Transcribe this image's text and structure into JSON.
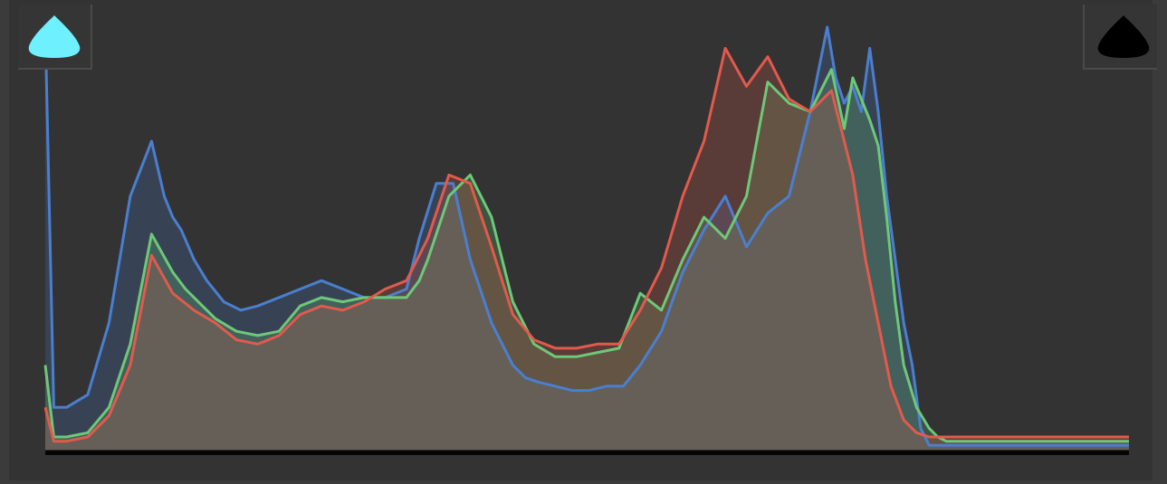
{
  "histogram": {
    "channels": [
      {
        "key": "blue",
        "color": "#4a7fd0"
      },
      {
        "key": "green",
        "color": "#6ec878"
      },
      {
        "key": "red",
        "color": "#e25a4c"
      }
    ],
    "baseline_color": "#050505",
    "shadow_clip_indicator": {
      "icon": "shadow-clipping-triangle-icon",
      "color": "#6ef0ff",
      "active": true
    },
    "highlight_clip_indicator": {
      "icon": "highlight-clipping-triangle-icon",
      "color": "#000000",
      "active": false
    }
  },
  "chart_data": {
    "type": "area",
    "x_range": [
      0,
      255
    ],
    "y_range": [
      0,
      1
    ],
    "series": [
      {
        "key": "blue",
        "x": [
          0,
          2,
          5,
          10,
          15,
          20,
          25,
          28,
          30,
          32,
          35,
          38,
          42,
          46,
          50,
          55,
          60,
          65,
          70,
          75,
          80,
          85,
          88,
          92,
          96,
          100,
          105,
          110,
          113,
          116,
          120,
          124,
          128,
          132,
          136,
          140,
          145,
          150,
          155,
          160,
          165,
          170,
          175,
          180,
          184,
          186,
          188,
          190,
          192,
          194,
          196,
          198,
          200,
          202,
          204,
          206,
          208,
          210,
          212,
          214,
          216,
          218,
          220,
          222,
          224,
          226,
          228,
          230,
          232,
          235,
          240,
          245,
          250,
          255
        ],
        "y": [
          1.0,
          0.1,
          0.1,
          0.13,
          0.3,
          0.6,
          0.73,
          0.6,
          0.55,
          0.52,
          0.45,
          0.4,
          0.35,
          0.33,
          0.34,
          0.36,
          0.38,
          0.4,
          0.38,
          0.36,
          0.36,
          0.38,
          0.5,
          0.63,
          0.63,
          0.45,
          0.3,
          0.2,
          0.17,
          0.16,
          0.15,
          0.14,
          0.14,
          0.15,
          0.15,
          0.2,
          0.28,
          0.42,
          0.52,
          0.6,
          0.48,
          0.56,
          0.6,
          0.8,
          1.0,
          0.88,
          0.82,
          0.86,
          0.8,
          0.95,
          0.8,
          0.6,
          0.45,
          0.3,
          0.2,
          0.05,
          0.01,
          0.01,
          0.01,
          0.01,
          0.01,
          0.01,
          0.01,
          0.01,
          0.01,
          0.01,
          0.01,
          0.01,
          0.01,
          0.01,
          0.01,
          0.01,
          0.01,
          0.01
        ]
      },
      {
        "key": "green",
        "x": [
          0,
          2,
          5,
          10,
          15,
          20,
          25,
          30,
          33,
          36,
          40,
          45,
          50,
          55,
          60,
          65,
          70,
          75,
          80,
          85,
          88,
          90,
          95,
          100,
          105,
          110,
          115,
          120,
          125,
          130,
          135,
          140,
          145,
          150,
          155,
          160,
          165,
          170,
          175,
          180,
          185,
          188,
          190,
          192,
          194,
          196,
          198,
          200,
          202,
          205,
          208,
          210,
          212,
          214,
          216,
          218,
          220,
          222,
          224,
          226,
          228,
          230,
          232,
          235,
          240,
          245,
          250,
          255
        ],
        "y": [
          0.2,
          0.03,
          0.03,
          0.04,
          0.1,
          0.25,
          0.51,
          0.42,
          0.38,
          0.35,
          0.31,
          0.28,
          0.27,
          0.28,
          0.34,
          0.36,
          0.35,
          0.36,
          0.36,
          0.36,
          0.4,
          0.45,
          0.6,
          0.65,
          0.55,
          0.35,
          0.25,
          0.22,
          0.22,
          0.23,
          0.24,
          0.37,
          0.33,
          0.45,
          0.55,
          0.5,
          0.6,
          0.87,
          0.82,
          0.8,
          0.9,
          0.76,
          0.88,
          0.83,
          0.78,
          0.72,
          0.55,
          0.35,
          0.2,
          0.1,
          0.05,
          0.03,
          0.02,
          0.02,
          0.02,
          0.02,
          0.02,
          0.02,
          0.02,
          0.02,
          0.02,
          0.02,
          0.02,
          0.02,
          0.02,
          0.02,
          0.02,
          0.02
        ]
      },
      {
        "key": "red",
        "x": [
          0,
          2,
          5,
          10,
          15,
          20,
          25,
          30,
          35,
          40,
          45,
          50,
          55,
          60,
          65,
          70,
          75,
          80,
          85,
          90,
          95,
          100,
          105,
          110,
          115,
          120,
          125,
          130,
          135,
          140,
          145,
          150,
          155,
          160,
          165,
          170,
          175,
          180,
          185,
          190,
          193,
          196,
          199,
          202,
          205,
          208,
          211,
          214,
          217,
          220,
          223,
          226,
          229,
          232,
          235,
          240,
          245,
          250,
          255
        ],
        "y": [
          0.1,
          0.02,
          0.02,
          0.03,
          0.08,
          0.2,
          0.46,
          0.37,
          0.33,
          0.3,
          0.26,
          0.25,
          0.27,
          0.32,
          0.34,
          0.33,
          0.35,
          0.38,
          0.4,
          0.5,
          0.65,
          0.63,
          0.48,
          0.32,
          0.26,
          0.24,
          0.24,
          0.25,
          0.25,
          0.33,
          0.43,
          0.6,
          0.73,
          0.95,
          0.86,
          0.93,
          0.83,
          0.8,
          0.85,
          0.65,
          0.45,
          0.3,
          0.15,
          0.07,
          0.04,
          0.03,
          0.03,
          0.03,
          0.03,
          0.03,
          0.03,
          0.03,
          0.03,
          0.03,
          0.03,
          0.03,
          0.03,
          0.03,
          0.03
        ]
      }
    ]
  }
}
